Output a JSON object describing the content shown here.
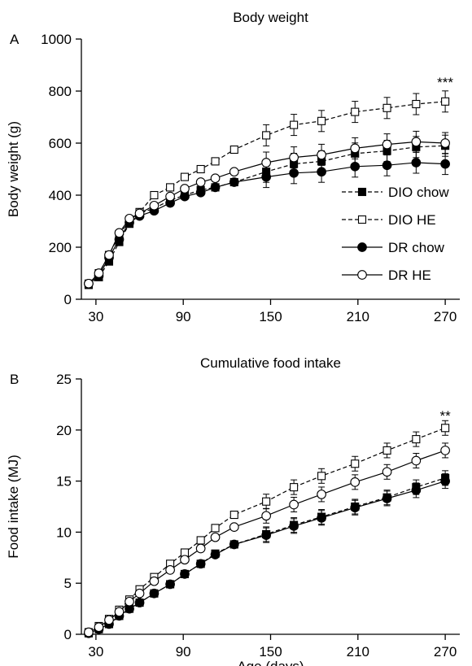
{
  "chart_data": [
    {
      "panel_label": "A",
      "type": "line",
      "title": "Body weight",
      "xlabel": "",
      "ylabel": "Body weight (g)",
      "xlim": [
        20,
        280
      ],
      "ylim": [
        0,
        1000
      ],
      "xticks": [
        30,
        90,
        150,
        210,
        270
      ],
      "yticks": [
        0,
        200,
        400,
        600,
        800,
        1000
      ],
      "grid": false,
      "legend_position": "bottom-right",
      "annotation": {
        "text": "***",
        "x": 270,
        "y": 810
      },
      "series": [
        {
          "name": "DIO chow",
          "marker": "filled-square",
          "line": "dashed",
          "x": [
            25,
            32,
            39,
            46,
            53,
            60,
            70,
            81,
            91,
            102,
            112,
            125,
            147,
            166,
            185,
            208,
            230,
            250,
            270
          ],
          "y": [
            55,
            85,
            145,
            220,
            290,
            330,
            350,
            380,
            400,
            420,
            430,
            450,
            490,
            520,
            530,
            560,
            570,
            585,
            590
          ]
        },
        {
          "name": "DIO HE",
          "marker": "open-square",
          "line": "dashed",
          "x": [
            25,
            32,
            39,
            46,
            53,
            60,
            70,
            81,
            91,
            102,
            112,
            125,
            147,
            166,
            185,
            208,
            230,
            250,
            270
          ],
          "y": [
            60,
            100,
            170,
            250,
            300,
            335,
            400,
            430,
            470,
            500,
            530,
            575,
            630,
            670,
            685,
            720,
            735,
            750,
            760
          ]
        },
        {
          "name": "DR chow",
          "marker": "filled-circle",
          "line": "solid",
          "x": [
            25,
            32,
            39,
            46,
            53,
            60,
            70,
            81,
            91,
            102,
            112,
            125,
            147,
            166,
            185,
            208,
            230,
            250,
            270
          ],
          "y": [
            60,
            90,
            160,
            230,
            295,
            320,
            340,
            370,
            395,
            410,
            430,
            450,
            470,
            485,
            490,
            510,
            515,
            525,
            520
          ]
        },
        {
          "name": "DR HE",
          "marker": "open-circle",
          "line": "solid",
          "x": [
            25,
            32,
            39,
            46,
            53,
            60,
            70,
            81,
            91,
            102,
            112,
            125,
            147,
            166,
            185,
            208,
            230,
            250,
            270
          ],
          "y": [
            60,
            100,
            170,
            255,
            310,
            330,
            360,
            395,
            425,
            450,
            465,
            490,
            525,
            545,
            555,
            580,
            595,
            605,
            600
          ]
        }
      ]
    },
    {
      "panel_label": "B",
      "type": "line",
      "title": "Cumulative food intake",
      "xlabel": "Age (days)",
      "ylabel": "Food intake (MJ)",
      "xlim": [
        20,
        280
      ],
      "ylim": [
        0,
        25
      ],
      "xticks": [
        30,
        90,
        150,
        210,
        270
      ],
      "yticks": [
        0,
        5,
        10,
        15,
        20,
        25
      ],
      "grid": false,
      "annotation": {
        "text": "**",
        "x": 270,
        "y": 20.8
      },
      "series": [
        {
          "name": "DIO chow",
          "marker": "filled-square",
          "line": "dashed",
          "x": [
            25,
            32,
            39,
            46,
            53,
            60,
            70,
            81,
            91,
            102,
            112,
            125,
            147,
            166,
            185,
            208,
            230,
            250,
            270
          ],
          "y": [
            0.1,
            0.5,
            1.0,
            1.8,
            2.5,
            3.1,
            4.0,
            4.9,
            5.9,
            6.9,
            7.9,
            8.8,
            9.8,
            10.7,
            11.5,
            12.5,
            13.4,
            14.4,
            15.3
          ]
        },
        {
          "name": "DIO HE",
          "marker": "open-square",
          "line": "dashed",
          "x": [
            25,
            32,
            39,
            46,
            53,
            60,
            70,
            81,
            91,
            102,
            112,
            125,
            147,
            166,
            185,
            208,
            230,
            250,
            270
          ],
          "y": [
            0.2,
            0.8,
            1.5,
            2.4,
            3.4,
            4.4,
            5.6,
            6.9,
            8.0,
            9.2,
            10.4,
            11.7,
            13.0,
            14.4,
            15.5,
            16.7,
            18.0,
            19.1,
            20.2
          ]
        },
        {
          "name": "DR chow",
          "marker": "filled-circle",
          "line": "solid",
          "x": [
            25,
            32,
            39,
            46,
            53,
            60,
            70,
            81,
            91,
            102,
            112,
            125,
            147,
            166,
            185,
            208,
            230,
            250,
            270
          ],
          "y": [
            0.1,
            0.5,
            1.0,
            1.8,
            2.5,
            3.1,
            4.0,
            4.9,
            5.9,
            6.9,
            7.8,
            8.8,
            9.7,
            10.6,
            11.4,
            12.4,
            13.3,
            14.1,
            15.0
          ]
        },
        {
          "name": "DR HE",
          "marker": "open-circle",
          "line": "solid",
          "x": [
            25,
            32,
            39,
            46,
            53,
            60,
            70,
            81,
            91,
            102,
            112,
            125,
            147,
            166,
            185,
            208,
            230,
            250,
            270
          ],
          "y": [
            0.2,
            0.7,
            1.4,
            2.2,
            3.2,
            4.0,
            5.2,
            6.3,
            7.3,
            8.4,
            9.5,
            10.5,
            11.6,
            12.7,
            13.7,
            14.9,
            15.9,
            17.0,
            18.0
          ]
        }
      ]
    }
  ]
}
